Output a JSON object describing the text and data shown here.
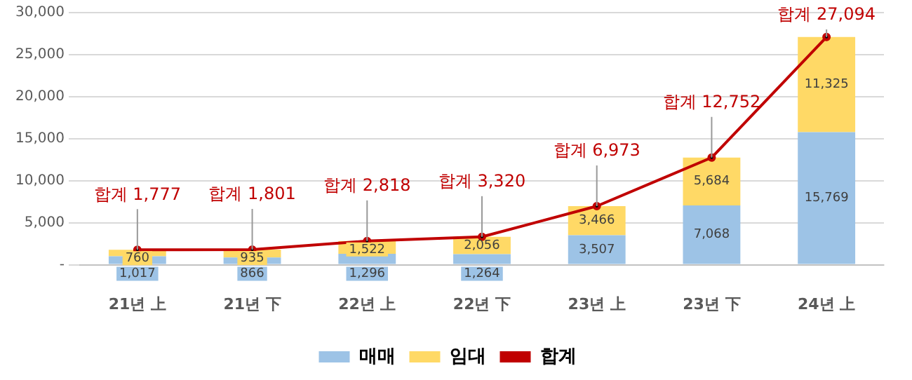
{
  "chart_data": {
    "type": "bar",
    "stacked": true,
    "categories": [
      "21년 上",
      "21년 下",
      "22년 上",
      "22년 下",
      "23년 上",
      "23년 下",
      "24년 上"
    ],
    "series": [
      {
        "name": "매매",
        "color": "#9dc3e6",
        "values": [
          1017,
          866,
          1296,
          1264,
          3507,
          7068,
          15769
        ],
        "value_labels": [
          "1,017",
          "866",
          "1,296",
          "1,264",
          "3,507",
          "7,068",
          "15,769"
        ]
      },
      {
        "name": "임대",
        "color": "#ffd966",
        "values": [
          760,
          935,
          1522,
          2056,
          3466,
          5684,
          11325
        ],
        "value_labels": [
          "760",
          "935",
          "1,522",
          "2,056",
          "3,466",
          "5,684",
          "11,325"
        ]
      },
      {
        "name": "합계",
        "type": "line",
        "color": "#c00000",
        "values": [
          1777,
          1801,
          2818,
          3320,
          6973,
          12752,
          27094
        ],
        "value_labels": [
          "합계 1,777",
          "합계 1,801",
          "합계 2,818",
          "합계 3,320",
          "합계 6,973",
          "합계 12,752",
          "합계 27,094"
        ]
      }
    ],
    "ylim": [
      0,
      30000
    ],
    "yticks": [
      {
        "value": 0,
        "label": "-"
      },
      {
        "value": 5000,
        "label": "5,000"
      },
      {
        "value": 10000,
        "label": "10,000"
      },
      {
        "value": 15000,
        "label": "15,000"
      },
      {
        "value": 20000,
        "label": "20,000"
      },
      {
        "value": 25000,
        "label": "25,000"
      },
      {
        "value": 30000,
        "label": "30,000"
      }
    ],
    "grid": "y",
    "legend": "bottom",
    "marker": "circle"
  }
}
